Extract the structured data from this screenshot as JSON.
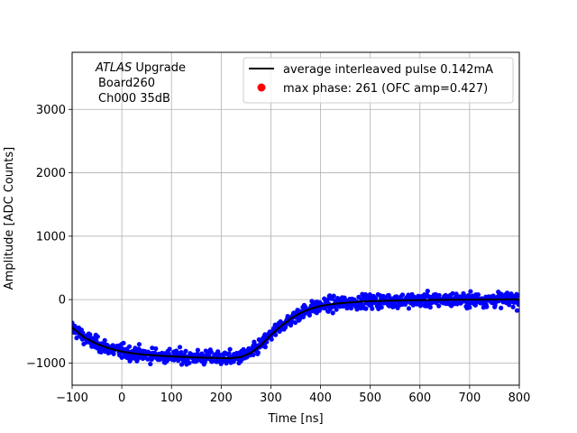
{
  "chart_data": {
    "type": "scatter",
    "xlabel": "Time [ns]",
    "ylabel": "Amplitude [ADC Counts]",
    "xlim": [
      -100,
      800
    ],
    "ylim": [
      -1350,
      3900
    ],
    "xticks": [
      -100,
      0,
      100,
      200,
      300,
      400,
      500,
      600,
      700,
      800
    ],
    "yticks": [
      -1000,
      0,
      1000,
      2000,
      3000
    ],
    "grid": true,
    "legend_placement": "top-right",
    "annotation": {
      "italic": "ATLAS",
      "upright": " Upgrade",
      "line2": "Board260",
      "line3": "Ch000 35dB"
    },
    "series": [
      {
        "name": "average interleaved pulse 0.142mA",
        "kind": "line",
        "color": "#000000",
        "x": [
          -100,
          -75,
          -50,
          -25,
          0,
          25,
          50,
          75,
          100,
          125,
          150,
          175,
          200,
          220,
          240,
          260,
          280,
          300,
          320,
          340,
          360,
          380,
          400,
          425,
          450,
          475,
          500,
          550,
          600,
          650,
          700,
          750,
          800
        ],
        "y": [
          -440,
          -600,
          -700,
          -770,
          -820,
          -850,
          -870,
          -885,
          -895,
          -905,
          -912,
          -918,
          -922,
          -925,
          -905,
          -840,
          -720,
          -560,
          -420,
          -300,
          -210,
          -145,
          -100,
          -70,
          -50,
          -35,
          -25,
          -15,
          -8,
          -4,
          0,
          2,
          3
        ]
      },
      {
        "name": "samples",
        "kind": "scatter",
        "color": "#0000ff",
        "noise": 55,
        "spacing_ns": 0.9
      },
      {
        "name": "max phase: 261 (OFC amp=0.427)",
        "kind": "marker",
        "color": "#ff0000"
      }
    ]
  }
}
